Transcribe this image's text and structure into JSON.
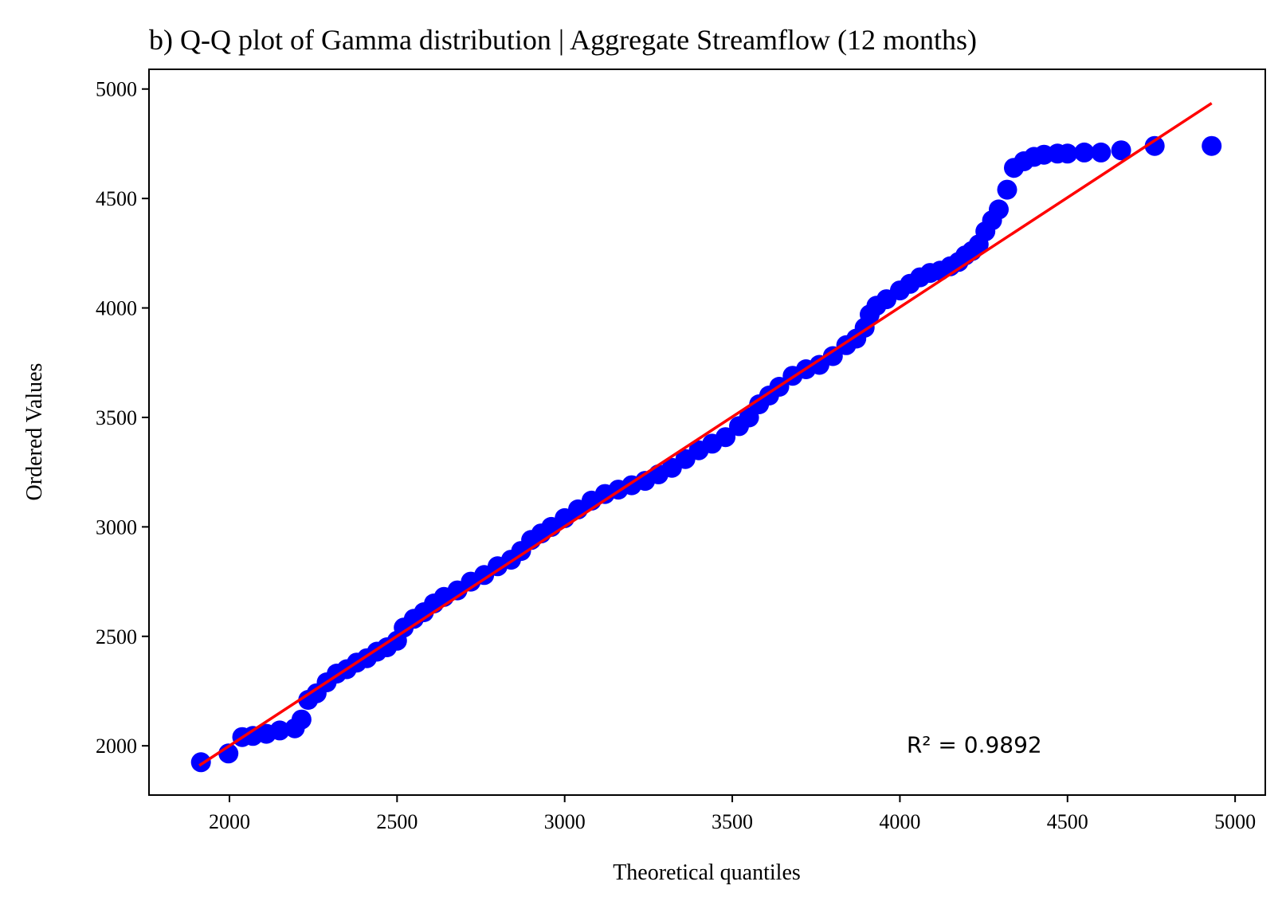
{
  "chart_data": {
    "type": "scatter",
    "title": "b) Q-Q plot of Gamma distribution | Aggregate Streamflow (12 months)",
    "xlabel": "Theoretical quantiles",
    "ylabel": "Ordered Values",
    "xlim": [
      1760,
      5090
    ],
    "ylim": [
      1775,
      5090
    ],
    "xticks": [
      2000,
      2500,
      3000,
      3500,
      4000,
      4500,
      5000
    ],
    "yticks": [
      2000,
      2500,
      3000,
      3500,
      4000,
      4500,
      5000
    ],
    "grid": false,
    "annotation": {
      "text": "R² = 0.9892",
      "x": 4020,
      "y": 1970
    },
    "colors": {
      "points": "#0000ff",
      "fit_line": "#ff0000"
    },
    "fit_line": {
      "x": [
        1910,
        4930
      ],
      "y": [
        1910,
        4935
      ]
    },
    "points": [
      [
        1915,
        1925
      ],
      [
        1997,
        1965
      ],
      [
        2038,
        2040
      ],
      [
        2070,
        2045
      ],
      [
        2110,
        2055
      ],
      [
        2150,
        2070
      ],
      [
        2195,
        2080
      ],
      [
        2215,
        2120
      ],
      [
        2235,
        2210
      ],
      [
        2260,
        2240
      ],
      [
        2290,
        2290
      ],
      [
        2320,
        2330
      ],
      [
        2350,
        2350
      ],
      [
        2380,
        2380
      ],
      [
        2410,
        2400
      ],
      [
        2440,
        2430
      ],
      [
        2470,
        2450
      ],
      [
        2500,
        2480
      ],
      [
        2520,
        2540
      ],
      [
        2550,
        2580
      ],
      [
        2580,
        2610
      ],
      [
        2610,
        2650
      ],
      [
        2640,
        2680
      ],
      [
        2680,
        2710
      ],
      [
        2720,
        2750
      ],
      [
        2760,
        2780
      ],
      [
        2800,
        2820
      ],
      [
        2840,
        2850
      ],
      [
        2870,
        2890
      ],
      [
        2900,
        2940
      ],
      [
        2930,
        2970
      ],
      [
        2960,
        3000
      ],
      [
        3000,
        3040
      ],
      [
        3040,
        3080
      ],
      [
        3080,
        3120
      ],
      [
        3120,
        3150
      ],
      [
        3160,
        3170
      ],
      [
        3200,
        3190
      ],
      [
        3240,
        3210
      ],
      [
        3280,
        3240
      ],
      [
        3320,
        3270
      ],
      [
        3360,
        3310
      ],
      [
        3400,
        3350
      ],
      [
        3440,
        3380
      ],
      [
        3480,
        3410
      ],
      [
        3520,
        3460
      ],
      [
        3550,
        3500
      ],
      [
        3580,
        3560
      ],
      [
        3610,
        3600
      ],
      [
        3640,
        3640
      ],
      [
        3680,
        3690
      ],
      [
        3720,
        3720
      ],
      [
        3760,
        3740
      ],
      [
        3800,
        3780
      ],
      [
        3840,
        3830
      ],
      [
        3870,
        3860
      ],
      [
        3895,
        3910
      ],
      [
        3910,
        3970
      ],
      [
        3930,
        4010
      ],
      [
        3960,
        4040
      ],
      [
        4000,
        4080
      ],
      [
        4030,
        4110
      ],
      [
        4060,
        4140
      ],
      [
        4090,
        4160
      ],
      [
        4120,
        4170
      ],
      [
        4150,
        4190
      ],
      [
        4175,
        4210
      ],
      [
        4195,
        4240
      ],
      [
        4215,
        4260
      ],
      [
        4235,
        4290
      ],
      [
        4255,
        4350
      ],
      [
        4275,
        4400
      ],
      [
        4295,
        4450
      ],
      [
        4320,
        4540
      ],
      [
        4340,
        4640
      ],
      [
        4370,
        4670
      ],
      [
        4400,
        4690
      ],
      [
        4430,
        4700
      ],
      [
        4470,
        4705
      ],
      [
        4500,
        4705
      ],
      [
        4550,
        4710
      ],
      [
        4600,
        4710
      ],
      [
        4660,
        4720
      ],
      [
        4760,
        4740
      ],
      [
        4930,
        4740
      ]
    ]
  }
}
